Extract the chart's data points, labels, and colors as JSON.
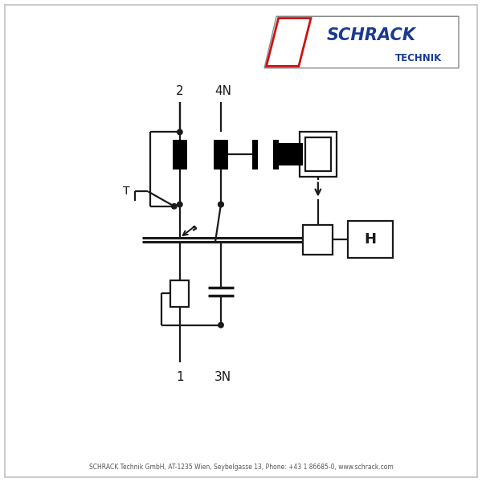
{
  "bg_color": "#ffffff",
  "border_color": "#c0c0c0",
  "line_color": "#1a1a1a",
  "footer_text": "SCHRACK Technik GmbH, AT-1235 Wien, Seybelgasse 13, Phone: +43 1 86685-0, www.schrack.com",
  "label_2": "2",
  "label_4N": "4N",
  "label_1": "1",
  "label_3N": "3N",
  "label_H": "H",
  "label_T": "T"
}
